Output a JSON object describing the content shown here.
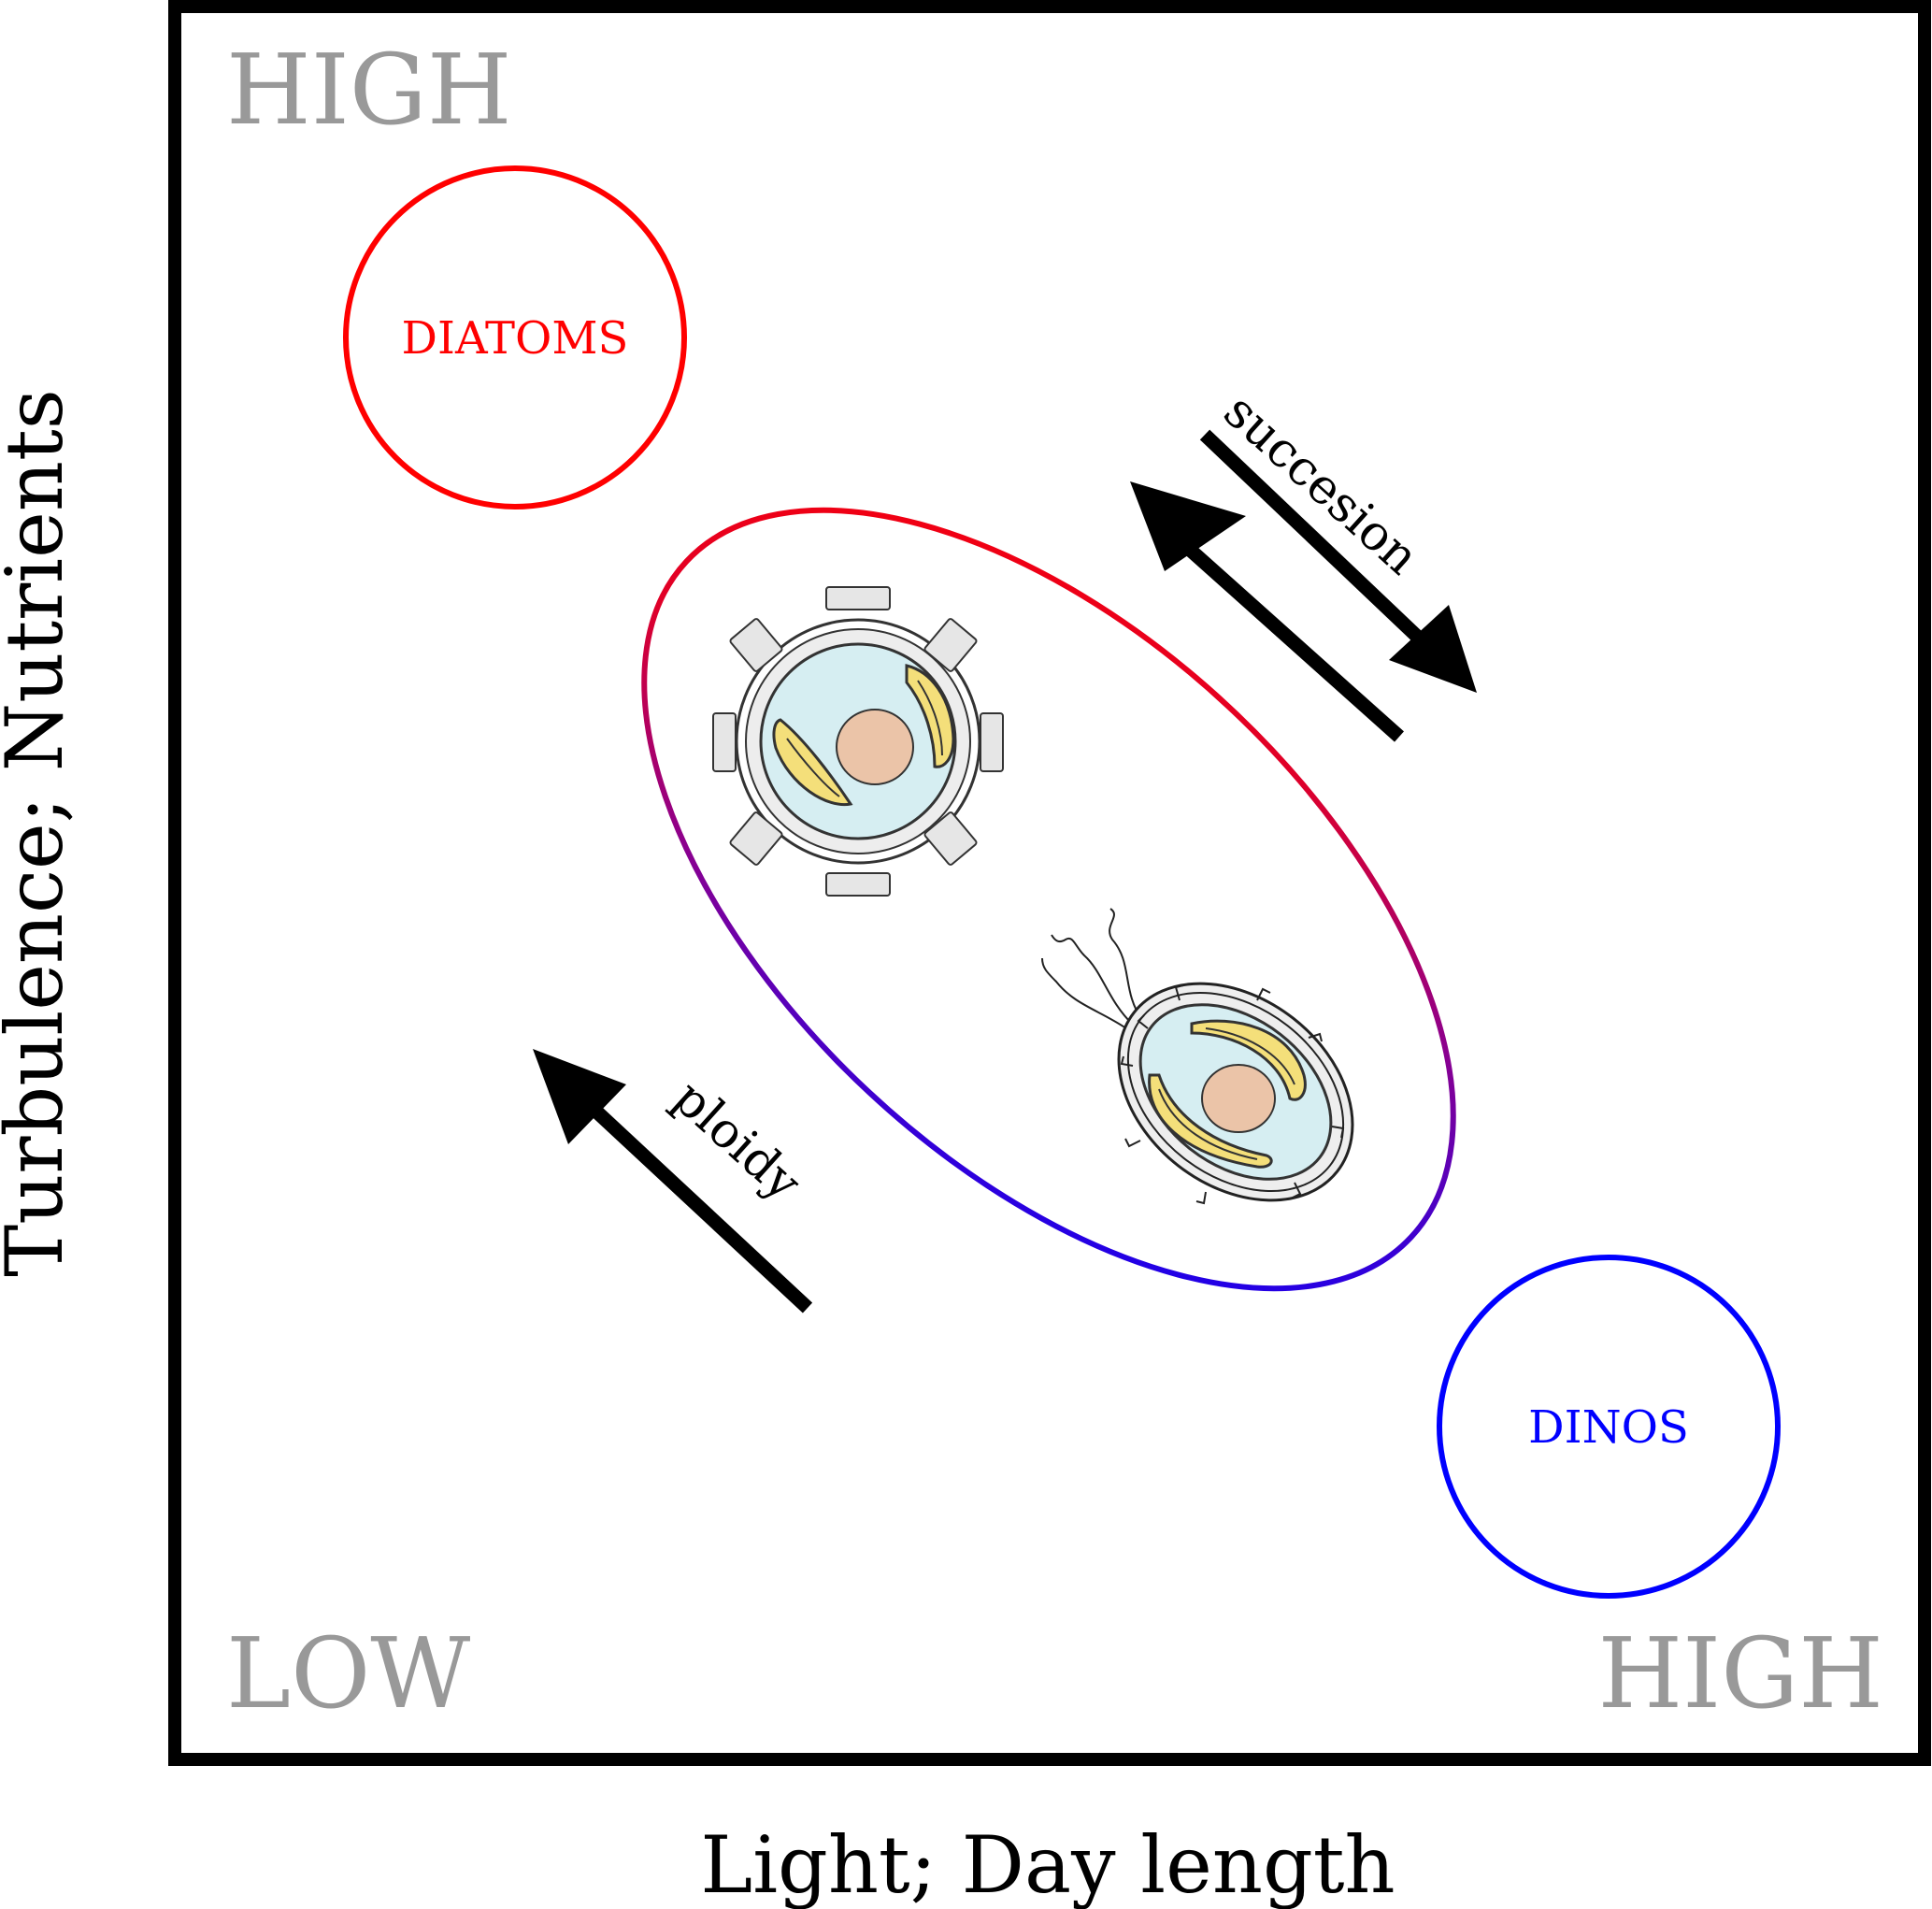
{
  "corners": {
    "top_left": "HIGH",
    "bottom_left": "LOW",
    "bottom_right": "HIGH"
  },
  "groups": {
    "diatoms": "DIATOMS",
    "dinos": "DINOS"
  },
  "arrows": {
    "succession": "succesion",
    "ploidy": "ploidy"
  },
  "axes": {
    "x": "Light; Day length",
    "y": "Turbulence; Nutrients"
  },
  "colors": {
    "diatoms": "#ff0000",
    "dinos": "#0000ff",
    "corner_text": "#999999",
    "frame": "#000000",
    "cell_fill": "#d6eef2",
    "nucleus": "#ebc4a8",
    "chloroplast": "#f4df7a",
    "theca": "#e2e2e2"
  }
}
